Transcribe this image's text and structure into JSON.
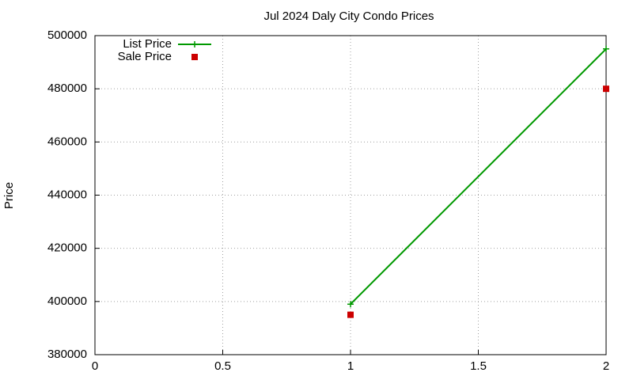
{
  "chart_data": {
    "type": "line",
    "title": "Jul 2024 Daly City Condo Prices",
    "ylabel": "Price",
    "x": [
      1,
      2
    ],
    "series": [
      {
        "name": "List Price",
        "color": "#009900",
        "style": "linespoints",
        "values": [
          399000,
          495000
        ]
      },
      {
        "name": "Sale Price",
        "color": "#cc0000",
        "style": "points",
        "values": [
          395000,
          480000
        ]
      }
    ],
    "xlim": [
      0,
      2
    ],
    "xticks": [
      0,
      0.5,
      1,
      1.5,
      2
    ],
    "ylim": [
      380000,
      500000
    ],
    "yticks": [
      380000,
      400000,
      420000,
      440000,
      460000,
      480000,
      500000
    ],
    "grid": true,
    "legend": "top-left"
  }
}
